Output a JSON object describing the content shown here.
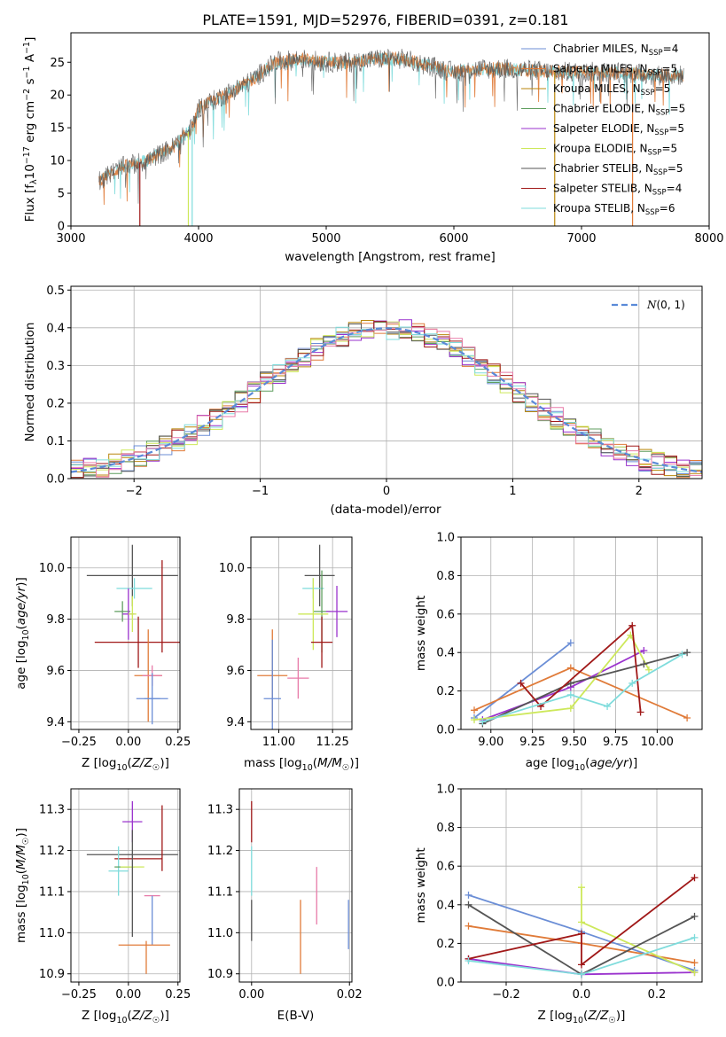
{
  "title": "PLATE=1591, MJD=52976, FIBERID=0391, z=0.181",
  "colors": {
    "chabrier_miles": "#6b8ed6",
    "salpeter_miles": "#e07b39",
    "kroupa_miles": "#b8860b",
    "chabrier_elodie": "#5f9e5f",
    "salpeter_elodie": "#9a32cd",
    "kroupa_elodie": "#cde85a",
    "chabrier_stelib": "#555555",
    "salpeter_stelib": "#a01818",
    "kroupa_stelib": "#7fdcdc",
    "pink": "#e87aa8",
    "gaussian": "#5a8ad8"
  },
  "legend": [
    {
      "label": "Chabrier MILES, N",
      "sub": "SSP",
      "suffix": "=4",
      "color": "chabrier_miles"
    },
    {
      "label": "Salpeter MILES, N",
      "sub": "SSP",
      "suffix": "=5",
      "color": "salpeter_miles"
    },
    {
      "label": "Kroupa MILES, N",
      "sub": "SSP",
      "suffix": "=5",
      "color": "kroupa_miles"
    },
    {
      "label": "Chabrier ELODIE, N",
      "sub": "SSP",
      "suffix": "=5",
      "color": "chabrier_elodie"
    },
    {
      "label": "Salpeter ELODIE, N",
      "sub": "SSP",
      "suffix": "=5",
      "color": "salpeter_elodie"
    },
    {
      "label": "Kroupa ELODIE, N",
      "sub": "SSP",
      "suffix": "=5",
      "color": "kroupa_elodie"
    },
    {
      "label": "Chabrier STELIB, N",
      "sub": "SSP",
      "suffix": "=5",
      "color": "chabrier_stelib"
    },
    {
      "label": "Salpeter STELIB, N",
      "sub": "SSP",
      "suffix": "=4",
      "color": "salpeter_stelib"
    },
    {
      "label": "Kroupa STELIB, N",
      "sub": "SSP",
      "suffix": "=6",
      "color": "kroupa_stelib"
    }
  ],
  "chart_data": [
    {
      "type": "line",
      "name": "spectrum",
      "xlabel": "wavelength [Angstrom, rest frame]",
      "ylabel": "Flux [f",
      "ylabel_rich": [
        "Flux [f",
        "λ",
        "10",
        "−17",
        " erg cm",
        "−2",
        " s",
        "−1",
        " A",
        "−1",
        "]"
      ],
      "xlim": [
        3000,
        8000
      ],
      "ylim": [
        0,
        29.5
      ],
      "xticks": [
        3000,
        4000,
        5000,
        6000,
        7000,
        8000
      ],
      "yticks": [
        0,
        5,
        10,
        15,
        20,
        25
      ],
      "continuum": {
        "x": [
          3220,
          3400,
          3600,
          3800,
          3950,
          4000,
          4200,
          4400,
          4600,
          4800,
          5000,
          5200,
          5400,
          5600,
          5800,
          6000,
          6200,
          6400,
          6600,
          6800,
          7000,
          7200,
          7400,
          7600,
          7800
        ],
        "y": [
          7,
          9,
          10,
          12,
          15,
          18,
          20,
          22,
          25,
          25.5,
          25,
          25,
          25.5,
          25.5,
          24.5,
          23.5,
          24,
          24,
          23.8,
          23.5,
          23.5,
          23.5,
          23.3,
          23,
          23
        ]
      },
      "drops": [
        {
          "x": 3540,
          "color": "salpeter_stelib"
        },
        {
          "x": 3920,
          "color": "kroupa_elodie"
        },
        {
          "x": 3950,
          "color": "kroupa_stelib"
        },
        {
          "x": 6790,
          "color": "kroupa_miles"
        },
        {
          "x": 7400,
          "color": "salpeter_miles"
        }
      ]
    },
    {
      "type": "bar",
      "name": "residual-histograms",
      "xlabel": "(data-model)/error",
      "ylabel": "Normed distribution",
      "xlim": [
        -2.5,
        2.5
      ],
      "ylim": [
        0,
        0.51
      ],
      "xticks": [
        -2,
        -1,
        0,
        1,
        2
      ],
      "yticks": [
        0.0,
        0.1,
        0.2,
        0.3,
        0.4,
        0.5
      ],
      "bin_width": 0.1,
      "legend": "N(0, 1)",
      "series_colors": [
        "chabrier_miles",
        "salpeter_miles",
        "kroupa_miles",
        "chabrier_elodie",
        "salpeter_elodie",
        "kroupa_elodie",
        "chabrier_stelib",
        "salpeter_stelib",
        "kroupa_stelib",
        "pink"
      ]
    },
    {
      "type": "scatter",
      "name": "age-vs-Z",
      "xlabel": "Z [log10(Z/Z☉)]",
      "ylabel": "age [log10(age/yr)]",
      "xlim": [
        -0.29,
        0.26
      ],
      "ylim": [
        9.37,
        10.12
      ],
      "xticks": [
        -0.25,
        0.0,
        0.25
      ],
      "yticks": [
        9.4,
        9.6,
        9.8,
        10.0
      ],
      "points": [
        {
          "x": 0.02,
          "y": 9.97,
          "xerr": 0.23,
          "yerr": 0.12,
          "color": "chabrier_stelib"
        },
        {
          "x": 0.03,
          "y": 9.92,
          "xerr": 0.09,
          "yerr": 0.04,
          "color": "kroupa_stelib"
        },
        {
          "x": -0.03,
          "y": 9.83,
          "xerr": 0.04,
          "yerr": 0.04,
          "color": "chabrier_elodie"
        },
        {
          "x": 0.0,
          "y": 9.82,
          "xerr": 0.03,
          "yerr": 0.1,
          "color": "salpeter_elodie"
        },
        {
          "x": 0.02,
          "y": 9.82,
          "xerr": 0.02,
          "yerr": 0.07,
          "color": "kroupa_elodie"
        },
        {
          "x": 0.05,
          "y": 9.71,
          "xerr": 0.22,
          "yerr": 0.1,
          "color": "salpeter_stelib"
        },
        {
          "x": 0.17,
          "y": 9.85,
          "xerr": 0.0,
          "yerr": 0.18,
          "color": "salpeter_stelib"
        },
        {
          "x": 0.1,
          "y": 9.58,
          "xerr": 0.07,
          "yerr": 0.18,
          "color": "salpeter_miles"
        },
        {
          "x": 0.12,
          "y": 9.58,
          "xerr": 0.05,
          "yerr": 0.04,
          "color": "pink"
        },
        {
          "x": 0.12,
          "y": 9.49,
          "xerr": 0.04,
          "yerr": 0.1,
          "color": "chabrier_miles"
        },
        {
          "x": 0.12,
          "y": 9.49,
          "xerr": 0.08,
          "yerr": 0.0,
          "color": "chabrier_miles"
        }
      ]
    },
    {
      "type": "scatter",
      "name": "age-vs-mass",
      "xlabel": "mass [log10(M/M☉)]",
      "ylabel": "",
      "xlim": [
        10.87,
        11.34
      ],
      "ylim": [
        9.37,
        10.12
      ],
      "xticks": [
        11.0,
        11.25
      ],
      "yticks": [
        9.4,
        9.6,
        9.8,
        10.0
      ],
      "points": [
        {
          "x": 11.19,
          "y": 9.97,
          "xerr": 0.07,
          "yerr": 0.12,
          "color": "chabrier_stelib"
        },
        {
          "x": 11.16,
          "y": 9.92,
          "xerr": 0.05,
          "yerr": 0.04,
          "color": "kroupa_stelib"
        },
        {
          "x": 11.2,
          "y": 9.83,
          "xerr": 0.04,
          "yerr": 0.16,
          "color": "chabrier_elodie"
        },
        {
          "x": 11.27,
          "y": 9.83,
          "xerr": 0.05,
          "yerr": 0.1,
          "color": "salpeter_elodie"
        },
        {
          "x": 11.16,
          "y": 9.82,
          "xerr": 0.07,
          "yerr": 0.14,
          "color": "kroupa_elodie"
        },
        {
          "x": 11.2,
          "y": 9.71,
          "xerr": 0.05,
          "yerr": 0.1,
          "color": "salpeter_stelib"
        },
        {
          "x": 11.09,
          "y": 9.57,
          "xerr": 0.05,
          "yerr": 0.08,
          "color": "pink"
        },
        {
          "x": 10.97,
          "y": 9.58,
          "xerr": 0.07,
          "yerr": 0.18,
          "color": "salpeter_miles"
        },
        {
          "x": 10.97,
          "y": 9.49,
          "xerr": 0.04,
          "yerr": 0.23,
          "color": "chabrier_miles"
        }
      ]
    },
    {
      "type": "line",
      "name": "mass-weight-vs-age",
      "xlabel": "age [log10(age/yr)]",
      "ylabel": "mass weight",
      "xlim": [
        8.82,
        10.27
      ],
      "ylim": [
        0,
        1
      ],
      "xticks": [
        9.0,
        9.25,
        9.5,
        9.75,
        10.0
      ],
      "yticks": [
        0.0,
        0.2,
        0.4,
        0.6,
        0.8,
        1.0
      ],
      "series": [
        {
          "color": "chabrier_miles",
          "x": [
            8.9,
            9.48
          ],
          "y": [
            0.06,
            0.45
          ]
        },
        {
          "color": "salpeter_miles",
          "x": [
            8.9,
            9.48,
            10.18
          ],
          "y": [
            0.1,
            0.32,
            0.06
          ]
        },
        {
          "color": "salpeter_elodie",
          "x": [
            8.95,
            9.48,
            9.92
          ],
          "y": [
            0.05,
            0.22,
            0.41
          ]
        },
        {
          "color": "kroupa_elodie",
          "x": [
            8.9,
            9.48,
            9.84,
            9.95
          ],
          "y": [
            0.05,
            0.11,
            0.49,
            0.31
          ]
        },
        {
          "color": "chabrier_stelib",
          "x": [
            8.95,
            9.48,
            9.92,
            10.18
          ],
          "y": [
            0.03,
            0.24,
            0.34,
            0.4
          ]
        },
        {
          "color": "salpeter_stelib",
          "x": [
            9.18,
            9.3,
            9.85,
            9.9
          ],
          "y": [
            0.24,
            0.12,
            0.54,
            0.09
          ]
        },
        {
          "color": "kroupa_stelib",
          "x": [
            8.95,
            9.48,
            9.7,
            9.85,
            10.15
          ],
          "y": [
            0.04,
            0.18,
            0.12,
            0.24,
            0.39
          ]
        }
      ]
    },
    {
      "type": "scatter",
      "name": "mass-vs-Z",
      "xlabel": "Z [log10(Z/Z☉)]",
      "ylabel": "mass [log10(M/M☉)]",
      "xlim": [
        -0.29,
        0.26
      ],
      "ylim": [
        10.88,
        11.35
      ],
      "xticks": [
        -0.25,
        0.0,
        0.25
      ],
      "yticks": [
        10.9,
        11.0,
        11.1,
        11.2,
        11.3
      ],
      "points": [
        {
          "x": 0.02,
          "y": 11.19,
          "xerr": 0.23,
          "yerr": 0.0,
          "color": "chabrier_stelib"
        },
        {
          "x": 0.02,
          "y": 11.27,
          "xerr": 0.05,
          "yerr": 0.05,
          "color": "salpeter_elodie"
        },
        {
          "x": 0.05,
          "y": 11.18,
          "xerr": 0.12,
          "yerr": 0.0,
          "color": "salpeter_stelib"
        },
        {
          "x": 0.17,
          "y": 11.23,
          "xerr": 0.0,
          "yerr": 0.08,
          "color": "salpeter_stelib"
        },
        {
          "x": -0.05,
          "y": 11.15,
          "xerr": 0.05,
          "yerr": 0.06,
          "color": "kroupa_stelib"
        },
        {
          "x": -0.02,
          "y": 11.16,
          "xerr": 0.05,
          "yerr": 0.0,
          "color": "chabrier_elodie"
        },
        {
          "x": 0.02,
          "y": 11.16,
          "xerr": 0.06,
          "yerr": 0.0,
          "color": "kroupa_elodie"
        },
        {
          "x": 0.02,
          "y": 11.12,
          "xerr": 0.0,
          "yerr": 0.13,
          "color": "chabrier_stelib"
        },
        {
          "x": 0.12,
          "y": 11.09,
          "xerr": 0.04,
          "yerr": 0.0,
          "color": "pink"
        },
        {
          "x": 0.12,
          "y": 11.03,
          "xerr": 0.0,
          "yerr": 0.06,
          "color": "chabrier_miles"
        },
        {
          "x": 0.08,
          "y": 10.97,
          "xerr": 0.13,
          "yerr": 0.0,
          "color": "salpeter_miles"
        },
        {
          "x": 0.09,
          "y": 10.94,
          "xerr": 0.0,
          "yerr": 0.04,
          "color": "salpeter_miles"
        }
      ]
    },
    {
      "type": "scatter",
      "name": "mass-vs-EBV",
      "xlabel": "E(B-V)",
      "ylabel": "",
      "xlim": [
        -0.0025,
        0.0205
      ],
      "ylim": [
        10.88,
        11.35
      ],
      "xticks": [
        0.0,
        0.02
      ],
      "yticks": [
        10.9,
        11.0,
        11.1,
        11.2,
        11.3
      ],
      "points": [
        {
          "x": 0.0,
          "y": 11.27,
          "xerr": 0.0,
          "yerr": 0.05,
          "color": "salpeter_stelib"
        },
        {
          "x": 0.0,
          "y": 11.15,
          "xerr": 0.0,
          "yerr": 0.06,
          "color": "kroupa_stelib"
        },
        {
          "x": 0.0,
          "y": 11.03,
          "xerr": 0.0,
          "yerr": 0.05,
          "color": "chabrier_stelib"
        },
        {
          "x": 0.0133,
          "y": 11.09,
          "xerr": 0.0,
          "yerr": 0.07,
          "color": "pink"
        },
        {
          "x": 0.01,
          "y": 10.99,
          "xerr": 0.0,
          "yerr": 0.09,
          "color": "salpeter_miles"
        },
        {
          "x": 0.0198,
          "y": 11.02,
          "xerr": 0.0,
          "yerr": 0.06,
          "color": "chabrier_miles"
        }
      ]
    },
    {
      "type": "line",
      "name": "mass-weight-vs-Z",
      "xlabel": "Z [log10(Z/Z☉)]",
      "ylabel": "mass weight",
      "xlim": [
        -0.32,
        0.32
      ],
      "ylim": [
        0,
        1
      ],
      "xticks": [
        -0.2,
        0.0,
        0.2
      ],
      "yticks": [
        0.0,
        0.2,
        0.4,
        0.6,
        0.8,
        1.0
      ],
      "series": [
        {
          "color": "chabrier_miles",
          "x": [
            -0.3,
            0.0,
            0.3
          ],
          "y": [
            0.45,
            0.26,
            0.06
          ]
        },
        {
          "color": "salpeter_miles",
          "x": [
            -0.3,
            0.0,
            0.3
          ],
          "y": [
            0.29,
            0.2,
            0.1
          ]
        },
        {
          "color": "salpeter_elodie",
          "x": [
            -0.3,
            0.0,
            0.3
          ],
          "y": [
            0.12,
            0.04,
            0.05
          ]
        },
        {
          "color": "kroupa_elodie",
          "x": [
            0.0,
            0.0,
            0.3
          ],
          "y": [
            0.49,
            0.31,
            0.05
          ]
        },
        {
          "color": "chabrier_stelib",
          "x": [
            -0.3,
            0.0,
            0.3
          ],
          "y": [
            0.4,
            0.04,
            0.34
          ]
        },
        {
          "color": "salpeter_stelib",
          "x": [
            -0.3,
            0.0,
            0.0,
            0.3
          ],
          "y": [
            0.12,
            0.25,
            0.09,
            0.54
          ]
        },
        {
          "color": "kroupa_stelib",
          "x": [
            -0.3,
            0.0,
            0.3
          ],
          "y": [
            0.11,
            0.04,
            0.23
          ]
        }
      ]
    }
  ]
}
